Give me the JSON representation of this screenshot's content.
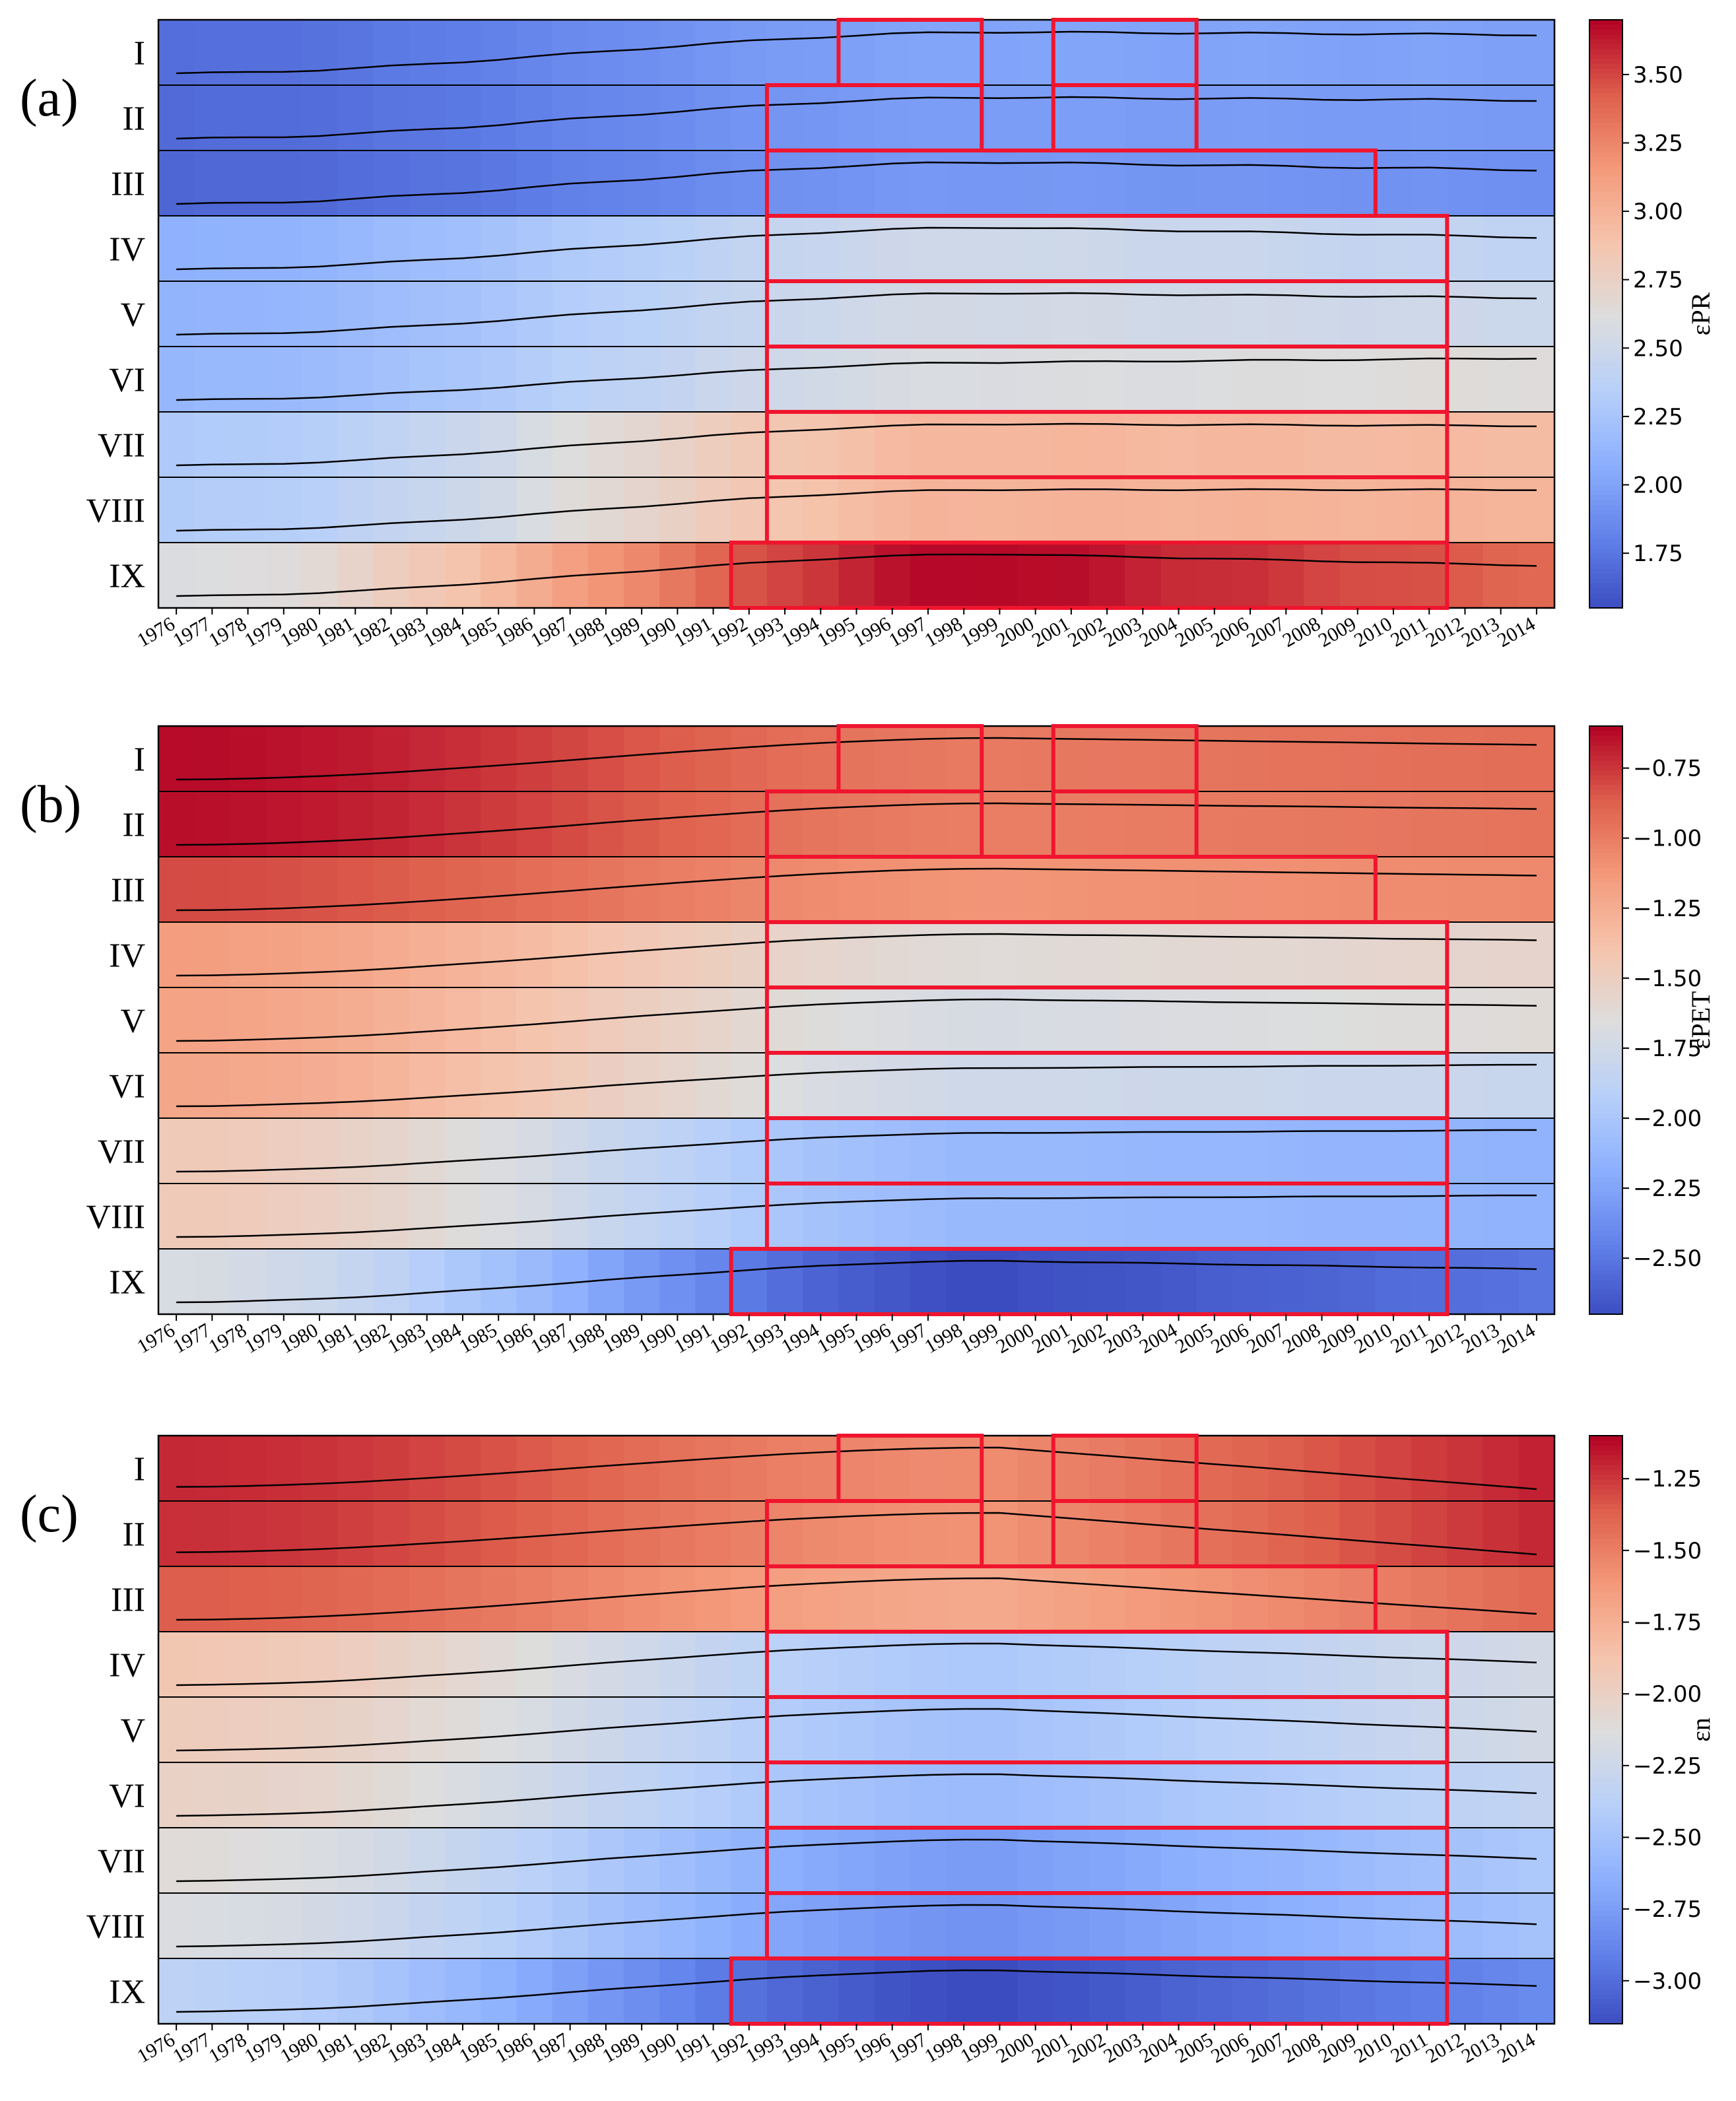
{
  "chart_data": [
    {
      "type": "heatmap",
      "panel_label": "(a)",
      "colorbar_label": "εPR",
      "colormap": "coolwarm",
      "vmin": 1.55,
      "vmax": 3.7,
      "colorbar_ticks": [
        "1.75",
        "2.00",
        "2.25",
        "2.50",
        "2.75",
        "3.00",
        "3.25",
        "3.50"
      ],
      "colorbar_tick_values": [
        1.75,
        2.0,
        2.25,
        2.5,
        2.75,
        3.0,
        3.25,
        3.5
      ],
      "row_labels": [
        "I",
        "II",
        "III",
        "IV",
        "V",
        "VI",
        "VII",
        "VIII",
        "IX"
      ],
      "years": [
        "1976",
        "1977",
        "1978",
        "1979",
        "1980",
        "1981",
        "1982",
        "1983",
        "1984",
        "1985",
        "1986",
        "1987",
        "1988",
        "1989",
        "1990",
        "1991",
        "1992",
        "1993",
        "1994",
        "1995",
        "1996",
        "1997",
        "1998",
        "1999",
        "2000",
        "2001",
        "2002",
        "2003",
        "2004",
        "2005",
        "2006",
        "2007",
        "2008",
        "2009",
        "2010",
        "2011",
        "2012",
        "2013",
        "2014"
      ],
      "rows": [
        {
          "label": "I",
          "start": 1.72,
          "peak": 2.02,
          "end": 2.0
        },
        {
          "label": "II",
          "start": 1.7,
          "peak": 1.98,
          "end": 1.96
        },
        {
          "label": "III",
          "start": 1.68,
          "peak": 1.95,
          "end": 1.9
        },
        {
          "label": "IV",
          "start": 2.1,
          "peak": 2.52,
          "end": 2.42
        },
        {
          "label": "V",
          "start": 2.12,
          "peak": 2.55,
          "end": 2.5
        },
        {
          "label": "VI",
          "start": 2.15,
          "peak": 2.6,
          "end": 2.65
        },
        {
          "label": "VII",
          "start": 2.3,
          "peak": 2.98,
          "end": 2.95
        },
        {
          "label": "VIII",
          "start": 2.32,
          "peak": 3.0,
          "end": 3.0
        },
        {
          "label": "IX",
          "start": 2.6,
          "peak": 3.7,
          "end": 3.4
        }
      ],
      "highlight_boxes": [
        {
          "rows": [
            "I"
          ],
          "years": [
            "1995",
            "1998"
          ]
        },
        {
          "rows": [
            "I",
            "II"
          ],
          "years": [
            "2001",
            "2004"
          ]
        },
        {
          "rows": [
            "II"
          ],
          "years": [
            "1993",
            "1998"
          ]
        },
        {
          "rows": [
            "III"
          ],
          "years": [
            "1993",
            "2009"
          ]
        },
        {
          "rows": [
            "IV",
            "VIII"
          ],
          "years": [
            "1993",
            "2011"
          ]
        },
        {
          "rows": [
            "IX"
          ],
          "years": [
            "1992",
            "2011"
          ]
        }
      ]
    },
    {
      "type": "heatmap",
      "panel_label": "(b)",
      "colorbar_label": "εPET",
      "colormap": "coolwarm",
      "vmin": -2.7,
      "vmax": -0.6,
      "colorbar_ticks": [
        "−2.50",
        "−2.25",
        "−2.00",
        "−1.75",
        "−1.50",
        "−1.25",
        "−1.00",
        "−0.75"
      ],
      "colorbar_tick_values": [
        -2.5,
        -2.25,
        -2.0,
        -1.75,
        -1.5,
        -1.25,
        -1.0,
        -0.75
      ],
      "row_labels": [
        "I",
        "II",
        "III",
        "IV",
        "V",
        "VI",
        "VII",
        "VIII",
        "IX"
      ],
      "years": [
        "1976",
        "1977",
        "1978",
        "1979",
        "1980",
        "1981",
        "1982",
        "1983",
        "1984",
        "1985",
        "1986",
        "1987",
        "1988",
        "1989",
        "1990",
        "1991",
        "1992",
        "1993",
        "1994",
        "1995",
        "1996",
        "1997",
        "1998",
        "1999",
        "2000",
        "2001",
        "2002",
        "2003",
        "2004",
        "2005",
        "2006",
        "2007",
        "2008",
        "2009",
        "2010",
        "2011",
        "2012",
        "2013",
        "2014"
      ],
      "rows": [
        {
          "label": "I",
          "start": -0.62,
          "peak": -0.98,
          "end": -0.92
        },
        {
          "label": "II",
          "start": -0.63,
          "peak": -1.0,
          "end": -0.95
        },
        {
          "label": "III",
          "start": -0.8,
          "peak": -1.1,
          "end": -1.05
        },
        {
          "label": "IV",
          "start": -1.15,
          "peak": -1.62,
          "end": -1.55
        },
        {
          "label": "V",
          "start": -1.18,
          "peak": -1.7,
          "end": -1.62
        },
        {
          "label": "VI",
          "start": -1.2,
          "peak": -1.75,
          "end": -1.8
        },
        {
          "label": "VII",
          "start": -1.45,
          "peak": -2.1,
          "end": -2.15
        },
        {
          "label": "VIII",
          "start": -1.45,
          "peak": -2.1,
          "end": -2.15
        },
        {
          "label": "IX",
          "start": -1.7,
          "peak": -2.7,
          "end": -2.5
        }
      ],
      "highlight_boxes": [
        {
          "rows": [
            "I"
          ],
          "years": [
            "1995",
            "1998"
          ]
        },
        {
          "rows": [
            "I",
            "II"
          ],
          "years": [
            "2001",
            "2004"
          ]
        },
        {
          "rows": [
            "II"
          ],
          "years": [
            "1993",
            "1998"
          ]
        },
        {
          "rows": [
            "III"
          ],
          "years": [
            "1993",
            "2009"
          ]
        },
        {
          "rows": [
            "IV",
            "VIII"
          ],
          "years": [
            "1993",
            "2011"
          ]
        },
        {
          "rows": [
            "IX"
          ],
          "years": [
            "1992",
            "2011"
          ]
        }
      ]
    },
    {
      "type": "heatmap",
      "panel_label": "(c)",
      "colorbar_label": "εn",
      "colormap": "coolwarm",
      "vmin": -3.15,
      "vmax": -1.1,
      "colorbar_ticks": [
        "−3.00",
        "−2.75",
        "−2.50",
        "−2.25",
        "−2.00",
        "−1.75",
        "−1.50",
        "−1.25"
      ],
      "colorbar_tick_values": [
        -3.0,
        -2.75,
        -2.5,
        -2.25,
        -2.0,
        -1.75,
        -1.5,
        -1.25
      ],
      "row_labels": [
        "I",
        "II",
        "III",
        "IV",
        "V",
        "VI",
        "VII",
        "VIII",
        "IX"
      ],
      "years": [
        "1976",
        "1977",
        "1978",
        "1979",
        "1980",
        "1981",
        "1982",
        "1983",
        "1984",
        "1985",
        "1986",
        "1987",
        "1988",
        "1989",
        "1990",
        "1991",
        "1992",
        "1993",
        "1994",
        "1995",
        "1996",
        "1997",
        "1998",
        "1999",
        "2000",
        "2001",
        "2002",
        "2003",
        "2004",
        "2005",
        "2006",
        "2007",
        "2008",
        "2009",
        "2010",
        "2011",
        "2012",
        "2013",
        "2014"
      ],
      "rows": [
        {
          "label": "I",
          "start": -1.2,
          "peak": -1.55,
          "end": -1.18
        },
        {
          "label": "II",
          "start": -1.22,
          "peak": -1.58,
          "end": -1.2
        },
        {
          "label": "III",
          "start": -1.35,
          "peak": -1.7,
          "end": -1.4
        },
        {
          "label": "IV",
          "start": -1.9,
          "peak": -2.45,
          "end": -2.2
        },
        {
          "label": "V",
          "start": -1.95,
          "peak": -2.5,
          "end": -2.2
        },
        {
          "label": "VI",
          "start": -2.0,
          "peak": -2.55,
          "end": -2.3
        },
        {
          "label": "VII",
          "start": -2.1,
          "peak": -2.75,
          "end": -2.45
        },
        {
          "label": "VIII",
          "start": -2.15,
          "peak": -2.8,
          "end": -2.5
        },
        {
          "label": "IX",
          "start": -2.35,
          "peak": -3.15,
          "end": -2.85
        }
      ],
      "highlight_boxes": [
        {
          "rows": [
            "I"
          ],
          "years": [
            "1995",
            "1998"
          ]
        },
        {
          "rows": [
            "I",
            "II"
          ],
          "years": [
            "2001",
            "2004"
          ]
        },
        {
          "rows": [
            "II"
          ],
          "years": [
            "1993",
            "1998"
          ]
        },
        {
          "rows": [
            "III"
          ],
          "years": [
            "1993",
            "2009"
          ]
        },
        {
          "rows": [
            "IV",
            "VIII"
          ],
          "years": [
            "1993",
            "2011"
          ]
        },
        {
          "rows": [
            "IX"
          ],
          "years": [
            "1992",
            "2011"
          ]
        }
      ]
    }
  ]
}
